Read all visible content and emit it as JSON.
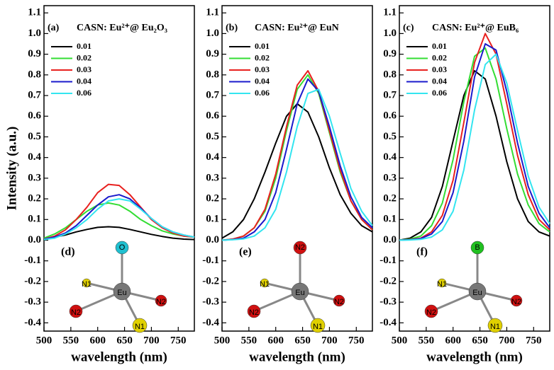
{
  "chart_data": [
    {
      "type": "line",
      "panel": "(a)",
      "title": "CASN: Eu²⁺@ Eu₂O₃",
      "ylabel": "Intensity (a.u.)",
      "xlabel": "wavelength (nm)",
      "x": [
        500,
        520,
        540,
        560,
        580,
        600,
        620,
        640,
        660,
        680,
        700,
        720,
        740,
        760,
        780
      ],
      "xlim": [
        500,
        780
      ],
      "xticks": [
        500,
        550,
        600,
        650,
        700,
        750
      ],
      "ylim": [
        -0.44,
        1.135
      ],
      "yticks": [
        -0.4,
        -0.3,
        -0.2,
        -0.1,
        {
          "value": 0,
          "label": "0.0"
        },
        0.1,
        0.2,
        0.3,
        0.4,
        0.5,
        0.6,
        0.7,
        0.8,
        0.9,
        {
          "value": 1,
          "label": "1.0"
        },
        1.1
      ],
      "legend": "upper left",
      "series": [
        {
          "name": "0.01",
          "color": "#000000",
          "values": [
            0.005,
            0.015,
            0.025,
            0.04,
            0.052,
            0.062,
            0.065,
            0.062,
            0.052,
            0.04,
            0.028,
            0.018,
            0.01,
            0.005,
            0.003
          ]
        },
        {
          "name": "0.02",
          "color": "#33dd33",
          "values": [
            0.01,
            0.03,
            0.06,
            0.1,
            0.14,
            0.17,
            0.18,
            0.17,
            0.14,
            0.1,
            0.07,
            0.045,
            0.03,
            0.02,
            0.015
          ]
        },
        {
          "name": "0.03",
          "color": "#e8211f",
          "values": [
            0.005,
            0.02,
            0.05,
            0.1,
            0.16,
            0.23,
            0.27,
            0.265,
            0.22,
            0.16,
            0.1,
            0.06,
            0.035,
            0.02,
            0.015
          ]
        },
        {
          "name": "0.04",
          "color": "#1a1acc",
          "values": [
            0.005,
            0.015,
            0.035,
            0.07,
            0.12,
            0.17,
            0.21,
            0.22,
            0.2,
            0.155,
            0.105,
            0.065,
            0.04,
            0.025,
            0.015
          ]
        },
        {
          "name": "0.06",
          "color": "#33e5f0",
          "values": [
            0.003,
            0.01,
            0.03,
            0.06,
            0.1,
            0.15,
            0.19,
            0.2,
            0.19,
            0.15,
            0.105,
            0.065,
            0.04,
            0.025,
            0.015
          ]
        }
      ],
      "inset": {
        "label": "(d)",
        "atoms": [
          "O",
          "N1",
          "Eu",
          "N2",
          "N2",
          "N1"
        ]
      }
    },
    {
      "type": "line",
      "panel": "(b)",
      "title": "CASN: Eu²⁺@ EuN",
      "xlabel": "wavelength (nm)",
      "x": [
        500,
        520,
        540,
        560,
        580,
        600,
        620,
        640,
        660,
        680,
        700,
        720,
        740,
        760,
        780
      ],
      "xlim": [
        500,
        780
      ],
      "xticks": [
        500,
        550,
        600,
        650,
        700,
        750
      ],
      "ylim": [
        -0.44,
        1.135
      ],
      "yticks": [
        -0.4,
        -0.3,
        -0.2,
        -0.1,
        {
          "value": 0,
          "label": "0.0"
        },
        0.1,
        0.2,
        0.3,
        0.4,
        0.5,
        0.6,
        0.7,
        0.8,
        0.9,
        {
          "value": 1,
          "label": "1.0"
        },
        1.1
      ],
      "legend": "upper left",
      "series": [
        {
          "name": "0.01",
          "color": "#000000",
          "values": [
            0.01,
            0.04,
            0.1,
            0.2,
            0.33,
            0.47,
            0.6,
            0.66,
            0.62,
            0.5,
            0.35,
            0.22,
            0.13,
            0.07,
            0.04
          ]
        },
        {
          "name": "0.02",
          "color": "#33dd33",
          "values": [
            0,
            0.005,
            0.02,
            0.06,
            0.14,
            0.3,
            0.53,
            0.73,
            0.8,
            0.71,
            0.52,
            0.33,
            0.19,
            0.1,
            0.05
          ]
        },
        {
          "name": "0.03",
          "color": "#e8211f",
          "values": [
            0,
            0.005,
            0.02,
            0.06,
            0.15,
            0.32,
            0.55,
            0.75,
            0.82,
            0.72,
            0.53,
            0.34,
            0.19,
            0.1,
            0.05
          ]
        },
        {
          "name": "0.04",
          "color": "#1a1acc",
          "values": [
            0,
            0.003,
            0.01,
            0.04,
            0.1,
            0.23,
            0.44,
            0.66,
            0.78,
            0.72,
            0.55,
            0.36,
            0.21,
            0.11,
            0.06
          ]
        },
        {
          "name": "0.06",
          "color": "#33e5f0",
          "values": [
            0,
            0.002,
            0.006,
            0.02,
            0.06,
            0.15,
            0.33,
            0.55,
            0.71,
            0.73,
            0.6,
            0.42,
            0.25,
            0.14,
            0.07
          ]
        }
      ],
      "inset": {
        "label": "(e)",
        "atoms": [
          "N2",
          "N1",
          "Eu",
          "N2",
          "N2",
          "N1"
        ]
      }
    },
    {
      "type": "line",
      "panel": "(c)",
      "title": "CASN: Eu²⁺@ EuB₆",
      "xlabel": "wavelength (nm)",
      "x": [
        500,
        520,
        540,
        560,
        580,
        600,
        620,
        640,
        660,
        680,
        700,
        720,
        740,
        760,
        780
      ],
      "xlim": [
        500,
        780
      ],
      "xticks": [
        500,
        550,
        600,
        650,
        700,
        750
      ],
      "ylim": [
        -0.44,
        1.135
      ],
      "yticks": [
        -0.4,
        -0.3,
        -0.2,
        -0.1,
        {
          "value": 0,
          "label": "0.0"
        },
        0.1,
        0.2,
        0.3,
        0.4,
        0.5,
        0.6,
        0.7,
        0.8,
        0.9,
        {
          "value": 1,
          "label": "1.0"
        },
        1.1
      ],
      "legend": "upper left",
      "series": [
        {
          "name": "0.01",
          "color": "#000000",
          "values": [
            0,
            0.01,
            0.04,
            0.11,
            0.26,
            0.48,
            0.7,
            0.82,
            0.78,
            0.6,
            0.38,
            0.2,
            0.09,
            0.04,
            0.02
          ]
        },
        {
          "name": "0.02",
          "color": "#33dd33",
          "values": [
            0,
            0.005,
            0.02,
            0.07,
            0.18,
            0.39,
            0.67,
            0.89,
            0.93,
            0.78,
            0.54,
            0.32,
            0.17,
            0.08,
            0.04
          ]
        },
        {
          "name": "0.03",
          "color": "#e8211f",
          "values": [
            0,
            0.003,
            0.01,
            0.04,
            0.12,
            0.29,
            0.57,
            0.86,
            1.0,
            0.9,
            0.66,
            0.41,
            0.22,
            0.1,
            0.05
          ]
        },
        {
          "name": "0.04",
          "color": "#1a1acc",
          "values": [
            0,
            0.002,
            0.008,
            0.03,
            0.09,
            0.23,
            0.48,
            0.79,
            0.95,
            0.92,
            0.72,
            0.47,
            0.26,
            0.13,
            0.06
          ]
        },
        {
          "name": "0.06",
          "color": "#33e5f0",
          "values": [
            0,
            0.001,
            0.004,
            0.015,
            0.05,
            0.14,
            0.34,
            0.63,
            0.85,
            0.9,
            0.76,
            0.53,
            0.31,
            0.16,
            0.08
          ]
        }
      ],
      "inset": {
        "label": "(f)",
        "atoms": [
          "B",
          "N1",
          "Eu",
          "N2",
          "N2",
          "N1"
        ]
      }
    }
  ]
}
